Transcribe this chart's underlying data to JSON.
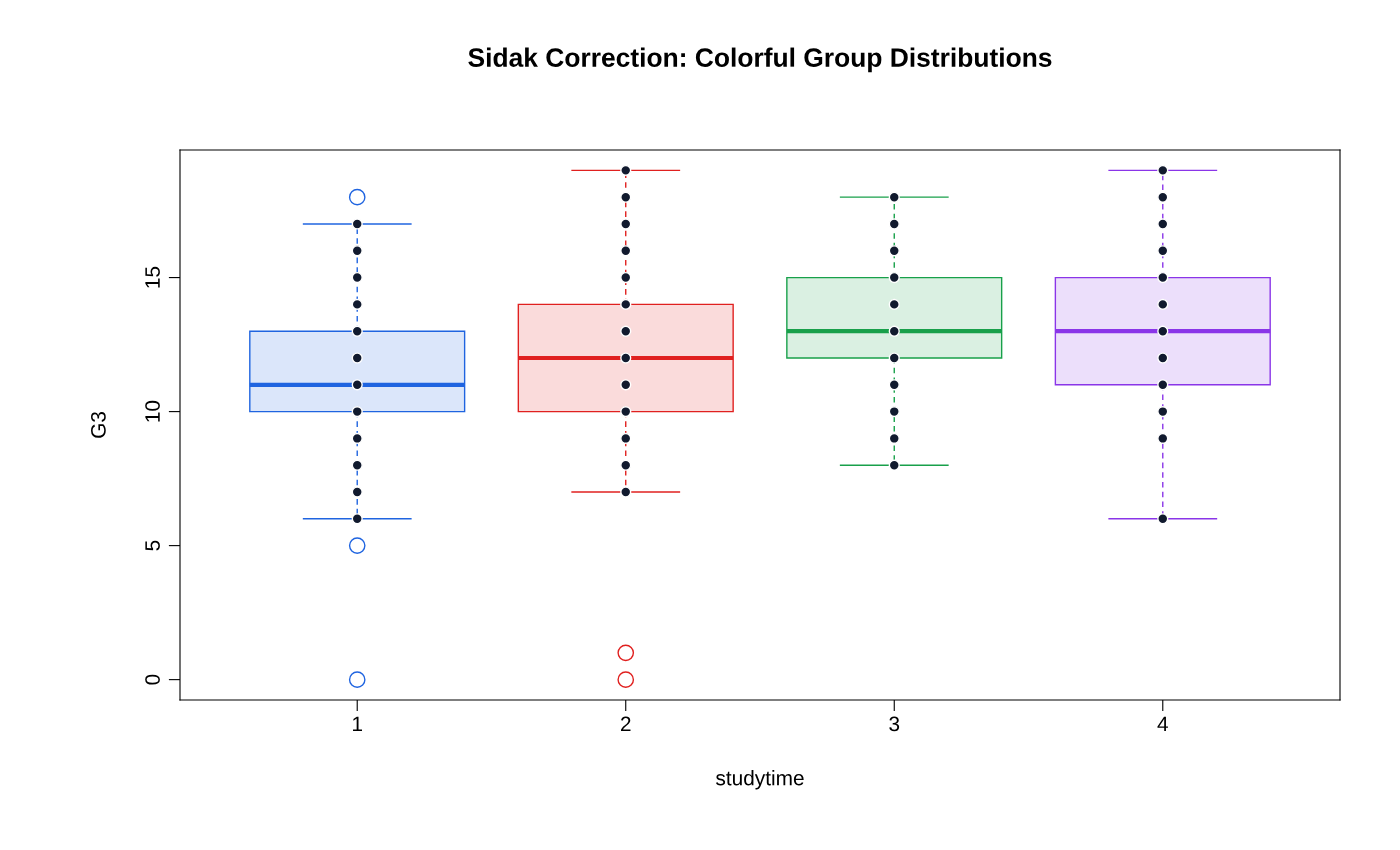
{
  "chart_data": {
    "type": "box",
    "title": "Sidak Correction: Colorful Group Distributions",
    "xlabel": "studytime",
    "ylabel": "G3",
    "categories": [
      "1",
      "2",
      "3",
      "4"
    ],
    "ylim": [
      -0.76,
      19.76
    ],
    "yticks": [
      0,
      5,
      10,
      15
    ],
    "colors": [
      "#1f64e0",
      "#e0201f",
      "#18a04a",
      "#8a35e8"
    ],
    "boxes": [
      {
        "low": 6,
        "q1": 10,
        "median": 11,
        "q3": 13,
        "high": 17,
        "outliers": [
          18,
          5,
          0
        ]
      },
      {
        "low": 7,
        "q1": 10,
        "median": 12,
        "q3": 14,
        "high": 19,
        "outliers": [
          1,
          0
        ]
      },
      {
        "low": 8,
        "q1": 12,
        "median": 13,
        "q3": 15,
        "high": 18
      },
      {
        "low": 6,
        "q1": 11,
        "median": 13,
        "q3": 15,
        "high": 19
      }
    ],
    "marker": "circle",
    "series": [
      {
        "type": "scatter",
        "color": "#111a2e",
        "x": [
          "1",
          "1",
          "1",
          "1",
          "1",
          "1",
          "1",
          "1",
          "1",
          "1",
          "1",
          "1"
        ],
        "values": [
          17,
          16,
          15,
          14,
          13,
          12,
          11,
          10,
          9,
          8,
          7,
          6
        ]
      },
      {
        "type": "scatter",
        "color": "#111a2e",
        "x": [
          "2",
          "2",
          "2",
          "2",
          "2",
          "2",
          "2",
          "2",
          "2",
          "2",
          "2",
          "2",
          "2"
        ],
        "values": [
          19,
          18,
          17,
          16,
          15,
          14,
          13,
          12,
          11,
          10,
          9,
          8,
          7
        ]
      },
      {
        "type": "scatter",
        "color": "#111a2e",
        "x": [
          "3",
          "3",
          "3",
          "3",
          "3",
          "3",
          "3",
          "3",
          "3",
          "3",
          "3"
        ],
        "values": [
          18,
          17,
          16,
          15,
          14,
          13,
          12,
          11,
          10,
          9,
          8
        ]
      },
      {
        "type": "scatter",
        "color": "#111a2e",
        "x": [
          "4",
          "4",
          "4",
          "4",
          "4",
          "4",
          "4",
          "4",
          "4",
          "4",
          "4",
          "4"
        ],
        "values": [
          19,
          18,
          17,
          16,
          15,
          14,
          13,
          12,
          11,
          10,
          9,
          6
        ]
      }
    ]
  }
}
